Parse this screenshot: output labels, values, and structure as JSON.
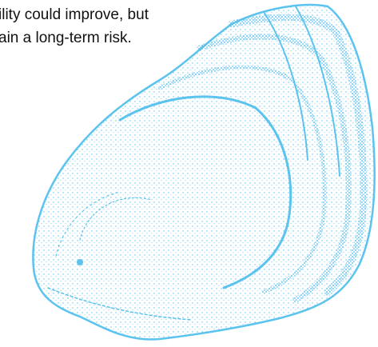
{
  "text": {
    "lines": [
      "ility could improve, but",
      "ain a long-term risk."
    ]
  }
}
